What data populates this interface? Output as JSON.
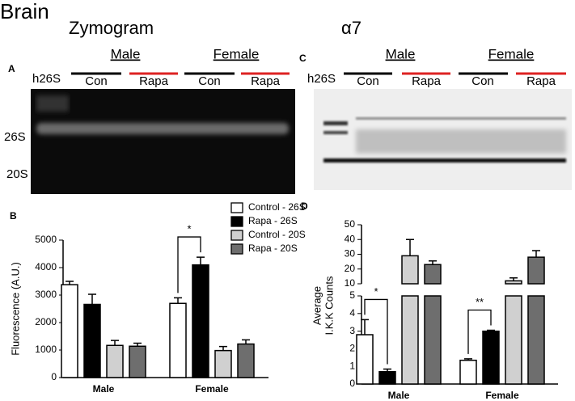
{
  "header": {
    "title": "Brain"
  },
  "panels": {
    "A": {
      "label": "A",
      "title": "Zymogram",
      "marker": "h26S",
      "groups": [
        "Male",
        "Female"
      ],
      "lanes": [
        "Con",
        "Rapa",
        "Con",
        "Rapa"
      ],
      "bands": [
        "26S",
        "20S"
      ]
    },
    "C": {
      "label": "C",
      "title": "α7",
      "marker": "h26S",
      "groups": [
        "Male",
        "Female"
      ],
      "lanes": [
        "Con",
        "Rapa",
        "Con",
        "Rapa"
      ]
    }
  },
  "chart_data": [
    {
      "type": "bar",
      "panel_label": "B",
      "ylabel": "Fluorescence (A.U.)",
      "categories": [
        "Male",
        "Female"
      ],
      "series": [
        {
          "name": "Control - 26S",
          "color": "#ffffff",
          "values": [
            3380,
            2700
          ],
          "errors": [
            120,
            200
          ]
        },
        {
          "name": "Rapa - 26S",
          "color": "#000000",
          "values": [
            2660,
            4100
          ],
          "errors": [
            370,
            280
          ]
        },
        {
          "name": "Control - 20S",
          "color": "#d0d0d0",
          "values": [
            1170,
            980
          ],
          "errors": [
            180,
            150
          ]
        },
        {
          "name": "Rapa - 20S",
          "color": "#6e6e6e",
          "values": [
            1140,
            1220
          ],
          "errors": [
            110,
            150
          ]
        }
      ],
      "ylim": [
        0,
        5000
      ],
      "yticks": [
        0,
        1000,
        2000,
        3000,
        4000,
        5000
      ],
      "legend": "top-right",
      "annotations": [
        {
          "text": "*",
          "category": "Female"
        }
      ]
    },
    {
      "type": "bar",
      "panel_label": "D",
      "ylabel": [
        "Average",
        "I.K.K Counts"
      ],
      "categories": [
        "Male",
        "Female"
      ],
      "series": [
        {
          "color": "#ffffff",
          "values": [
            2.8,
            1.35
          ],
          "errors": [
            0.85,
            0.08
          ]
        },
        {
          "color": "#000000",
          "values": [
            0.7,
            3.0
          ],
          "errors": [
            0.15,
            0.05
          ]
        },
        {
          "color": "#d0d0d0",
          "values": [
            29,
            12
          ],
          "errors": [
            11,
            2
          ]
        },
        {
          "color": "#6e6e6e",
          "values": [
            23,
            28
          ],
          "errors": [
            2.5,
            4.5
          ]
        }
      ],
      "axis_break": {
        "lower": {
          "ylim": [
            0,
            5
          ],
          "yticks": [
            0,
            1,
            2,
            3,
            4,
            5
          ]
        },
        "upper": {
          "ylim": [
            10,
            50
          ],
          "yticks": [
            10,
            20,
            30,
            40,
            50
          ]
        }
      },
      "annotations": [
        {
          "text": "*",
          "category": "Male"
        },
        {
          "text": "**",
          "category": "Female"
        }
      ]
    }
  ]
}
